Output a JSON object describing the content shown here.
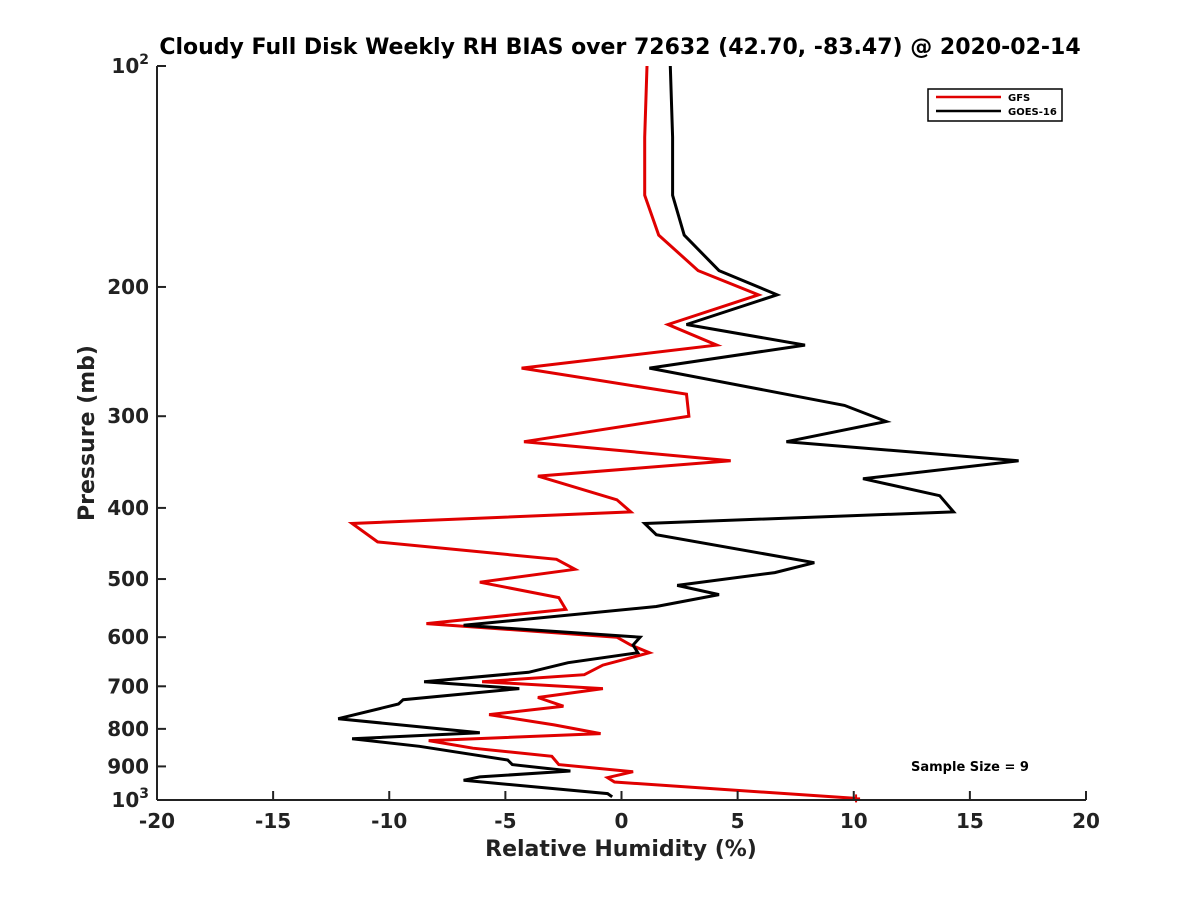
{
  "chart_data": {
    "type": "line",
    "title": "Cloudy Full Disk Weekly RH BIAS over 72632 (42.70, -83.47) @ 2020-02-14",
    "xlabel": "Relative Humidity (%)",
    "ylabel": "Pressure (mb)",
    "xlim": [
      -20,
      20
    ],
    "ylim": [
      100,
      1000
    ],
    "y_scale": "log",
    "y_reversed": true,
    "grid": false,
    "legend_position": "top-right",
    "x_ticks": [
      {
        "value": -20,
        "label": "-20"
      },
      {
        "value": -15,
        "label": "-15"
      },
      {
        "value": -10,
        "label": "-10"
      },
      {
        "value": -5,
        "label": "-5"
      },
      {
        "value": 0,
        "label": "0"
      },
      {
        "value": 5,
        "label": "5"
      },
      {
        "value": 10,
        "label": "10"
      },
      {
        "value": 15,
        "label": "15"
      },
      {
        "value": 20,
        "label": "20"
      }
    ],
    "y_ticks": [
      {
        "value": 100,
        "base": "10",
        "exp": "2"
      },
      {
        "value": 200,
        "label": "200"
      },
      {
        "value": 300,
        "label": "300"
      },
      {
        "value": 400,
        "label": "400"
      },
      {
        "value": 500,
        "label": "500"
      },
      {
        "value": 600,
        "label": "600"
      },
      {
        "value": 700,
        "label": "700"
      },
      {
        "value": 800,
        "label": "800"
      },
      {
        "value": 900,
        "label": "900"
      },
      {
        "value": 1000,
        "base": "10",
        "exp": "3"
      }
    ],
    "series": [
      {
        "name": "GFS",
        "color": "#e00000",
        "points": [
          [
            1.1,
            100
          ],
          [
            1.0,
            125
          ],
          [
            1.0,
            150
          ],
          [
            1.6,
            170
          ],
          [
            3.3,
            190
          ],
          [
            5.9,
            205
          ],
          [
            2.0,
            225
          ],
          [
            4.1,
            240
          ],
          [
            -4.3,
            258
          ],
          [
            2.8,
            280
          ],
          [
            2.9,
            300
          ],
          [
            -4.2,
            325
          ],
          [
            4.7,
            345
          ],
          [
            -3.6,
            362
          ],
          [
            -0.2,
            390
          ],
          [
            0.4,
            405
          ],
          [
            -11.6,
            420
          ],
          [
            -10.5,
            445
          ],
          [
            -2.8,
            470
          ],
          [
            -2.0,
            485
          ],
          [
            -6.1,
            505
          ],
          [
            -2.7,
            530
          ],
          [
            -2.4,
            550
          ],
          [
            -8.4,
            575
          ],
          [
            -0.2,
            600
          ],
          [
            0.4,
            615
          ],
          [
            1.2,
            630
          ],
          [
            -0.8,
            655
          ],
          [
            -1.6,
            675
          ],
          [
            -6.0,
            690
          ],
          [
            -0.8,
            705
          ],
          [
            -3.6,
            725
          ],
          [
            -2.5,
            745
          ],
          [
            -5.7,
            765
          ],
          [
            -2.9,
            790
          ],
          [
            -0.9,
            812
          ],
          [
            -8.3,
            830
          ],
          [
            -6.4,
            850
          ],
          [
            -3.0,
            872
          ],
          [
            -2.7,
            895
          ],
          [
            0.5,
            915
          ],
          [
            -0.6,
            932
          ],
          [
            -0.3,
            945
          ],
          [
            10.1,
            995
          ]
        ]
      },
      {
        "name": "GOES-16",
        "color": "#000000",
        "points": [
          [
            2.1,
            100
          ],
          [
            2.2,
            125
          ],
          [
            2.2,
            150
          ],
          [
            2.7,
            170
          ],
          [
            4.2,
            190
          ],
          [
            6.7,
            205
          ],
          [
            2.8,
            225
          ],
          [
            7.9,
            240
          ],
          [
            1.2,
            258
          ],
          [
            9.6,
            290
          ],
          [
            11.4,
            305
          ],
          [
            7.1,
            325
          ],
          [
            17.1,
            345
          ],
          [
            10.4,
            365
          ],
          [
            13.7,
            385
          ],
          [
            14.3,
            405
          ],
          [
            1.0,
            420
          ],
          [
            1.5,
            435
          ],
          [
            8.3,
            475
          ],
          [
            6.6,
            490
          ],
          [
            2.4,
            510
          ],
          [
            4.2,
            525
          ],
          [
            1.5,
            545
          ],
          [
            -6.8,
            578
          ],
          [
            0.8,
            600
          ],
          [
            0.5,
            615
          ],
          [
            0.7,
            630
          ],
          [
            -2.3,
            650
          ],
          [
            -4.0,
            670
          ],
          [
            -8.5,
            690
          ],
          [
            -4.4,
            705
          ],
          [
            -9.4,
            730
          ],
          [
            -9.6,
            740
          ],
          [
            -12.2,
            775
          ],
          [
            -6.1,
            810
          ],
          [
            -11.6,
            825
          ],
          [
            -8.7,
            845
          ],
          [
            -4.9,
            882
          ],
          [
            -4.7,
            895
          ],
          [
            -2.2,
            913
          ],
          [
            -6.1,
            930
          ],
          [
            -6.8,
            940
          ],
          [
            -0.6,
            980
          ],
          [
            -0.4,
            990
          ]
        ]
      }
    ],
    "annotations": [
      {
        "text": "Sample Size = 9"
      }
    ]
  }
}
